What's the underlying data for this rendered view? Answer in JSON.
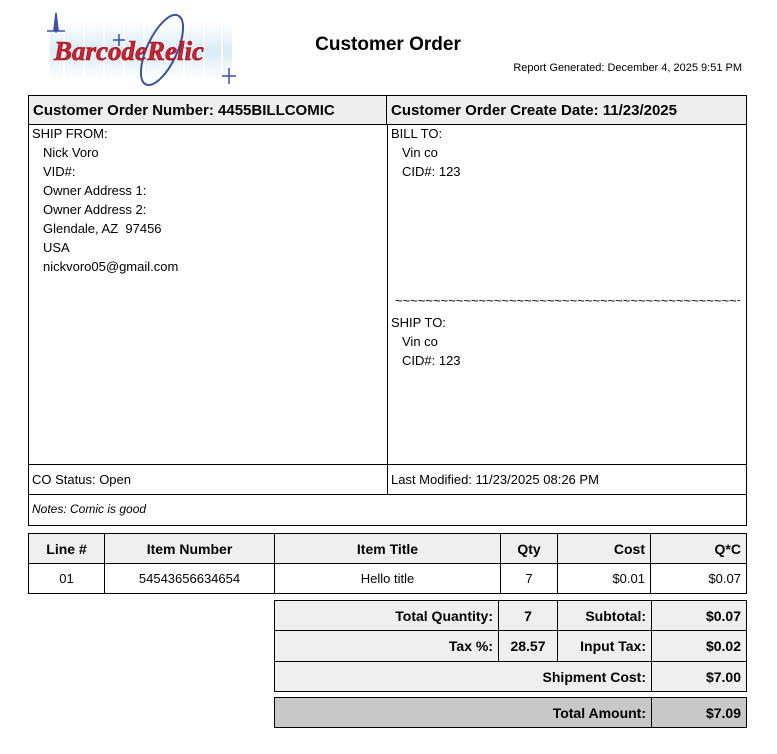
{
  "logo": {
    "text": "BarcodeRelic",
    "colors": {
      "red": "#d0202e",
      "blue": "#3b4fa8"
    }
  },
  "title": "Customer Order",
  "report_generated": "Report Generated: December 4, 2025 9:51 PM",
  "order": {
    "number_label": "Customer Order Number: 4455BILLCOMIC",
    "create_date_label": "Customer Order Create Date: 11/23/2025",
    "ship_from": {
      "heading": "SHIP FROM:",
      "lines": [
        "Nick Voro",
        "VID#:",
        "Owner Address 1:",
        "Owner Address 2:",
        "Glendale, AZ  97456",
        "USA",
        "nickvoro05@gmail.com"
      ]
    },
    "bill_to": {
      "heading": "BILL TO:",
      "lines": [
        "Vin co",
        "CID#: 123"
      ]
    },
    "separator": "~~~~~~~~~~~~~~~~~~~~~~~~~~~~~~~~~~~~~~~~~~~~~~~~~~~~~~~~~~~~~",
    "ship_to": {
      "heading": "SHIP TO:",
      "lines": [
        "Vin co",
        "CID#: 123"
      ]
    },
    "status": "CO Status: Open",
    "last_modified": "Last Modified: 11/23/2025 08:26 PM",
    "notes": "Notes: Comic is good"
  },
  "items": {
    "headers": [
      "Line #",
      "Item Number",
      "Item Title",
      "Qty",
      "Cost",
      "Q*C"
    ],
    "rows": [
      [
        "01",
        "54543656634654",
        "Hello title",
        "7",
        "$0.01",
        "$0.07"
      ]
    ]
  },
  "totals": {
    "total_quantity_label": "Total Quantity:",
    "total_quantity": "7",
    "subtotal_label": "Subtotal:",
    "subtotal": "$0.07",
    "tax_pct_label": "Tax %:",
    "tax_pct": "28.57",
    "input_tax_label": "Input Tax:",
    "input_tax": "$0.02",
    "shipment_cost_label": "Shipment Cost:",
    "shipment_cost": "$7.00",
    "total_amount_label": "Total Amount:",
    "total_amount": "$7.09"
  }
}
